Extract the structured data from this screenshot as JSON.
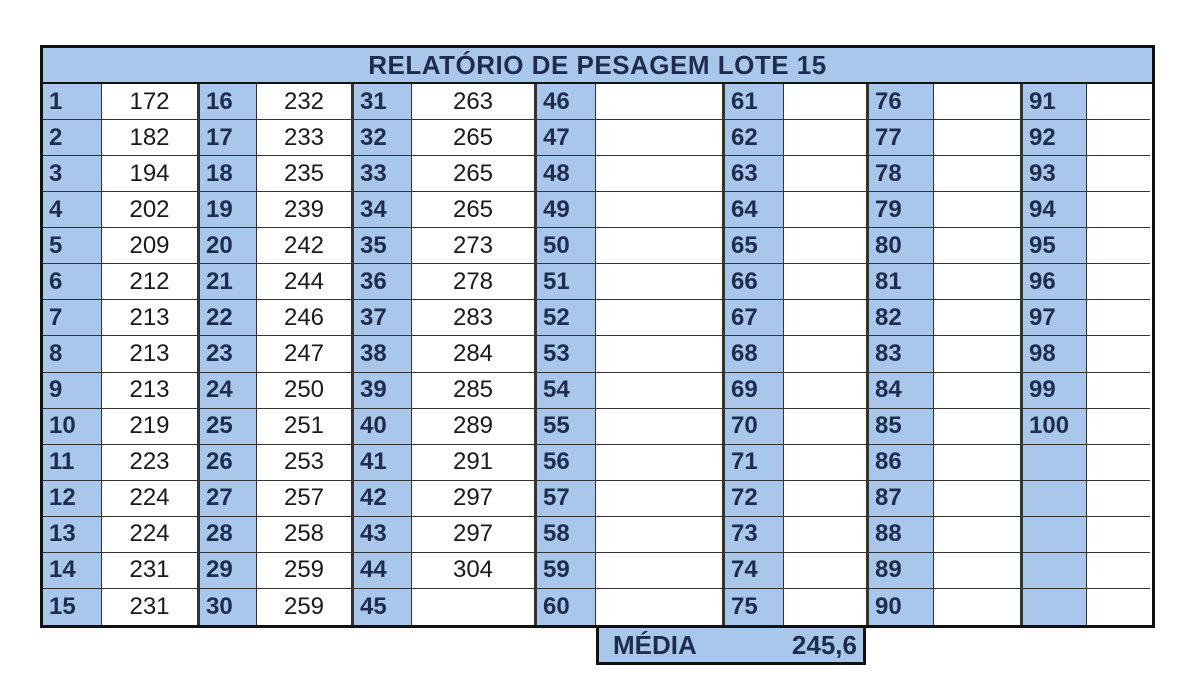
{
  "title": "RELATÓRIO DE PESAGEM LOTE 15",
  "columns": [
    {
      "ids": [
        "1",
        "2",
        "3",
        "4",
        "5",
        "6",
        "7",
        "8",
        "9",
        "10",
        "11",
        "12",
        "13",
        "14",
        "15"
      ],
      "values": [
        "172",
        "182",
        "194",
        "202",
        "209",
        "212",
        "213",
        "213",
        "213",
        "219",
        "223",
        "224",
        "224",
        "231",
        "231"
      ]
    },
    {
      "ids": [
        "16",
        "17",
        "18",
        "19",
        "20",
        "21",
        "22",
        "23",
        "24",
        "25",
        "26",
        "27",
        "28",
        "29",
        "30"
      ],
      "values": [
        "232",
        "233",
        "235",
        "239",
        "242",
        "244",
        "246",
        "247",
        "250",
        "251",
        "253",
        "257",
        "258",
        "259",
        "259"
      ]
    },
    {
      "ids": [
        "31",
        "32",
        "33",
        "34",
        "35",
        "36",
        "37",
        "38",
        "39",
        "40",
        "41",
        "42",
        "43",
        "44",
        "45"
      ],
      "values": [
        "263",
        "265",
        "265",
        "265",
        "273",
        "278",
        "283",
        "284",
        "285",
        "289",
        "291",
        "297",
        "297",
        "304",
        ""
      ]
    },
    {
      "ids": [
        "46",
        "47",
        "48",
        "49",
        "50",
        "51",
        "52",
        "53",
        "54",
        "55",
        "56",
        "57",
        "58",
        "59",
        "60"
      ],
      "values": [
        "",
        "",
        "",
        "",
        "",
        "",
        "",
        "",
        "",
        "",
        "",
        "",
        "",
        "",
        ""
      ]
    },
    {
      "ids": [
        "61",
        "62",
        "63",
        "64",
        "65",
        "66",
        "67",
        "68",
        "69",
        "70",
        "71",
        "72",
        "73",
        "74",
        "75"
      ],
      "values": [
        "",
        "",
        "",
        "",
        "",
        "",
        "",
        "",
        "",
        "",
        "",
        "",
        "",
        "",
        ""
      ]
    },
    {
      "ids": [
        "76",
        "77",
        "78",
        "79",
        "80",
        "81",
        "82",
        "83",
        "84",
        "85",
        "86",
        "87",
        "88",
        "89",
        "90"
      ],
      "values": [
        "",
        "",
        "",
        "",
        "",
        "",
        "",
        "",
        "",
        "",
        "",
        "",
        "",
        "",
        ""
      ]
    },
    {
      "ids": [
        "91",
        "92",
        "93",
        "94",
        "95",
        "96",
        "97",
        "98",
        "99",
        "100",
        "",
        "",
        "",
        "",
        ""
      ],
      "values": [
        "",
        "",
        "",
        "",
        "",
        "",
        "",
        "",
        "",
        "",
        "",
        "",
        "",
        "",
        ""
      ]
    }
  ],
  "media": {
    "label": "MÉDIA",
    "value": "245,6"
  },
  "colors": {
    "header_fill": "#a9c6eb",
    "header_text": "#1f2d4d",
    "border": "#111111"
  }
}
